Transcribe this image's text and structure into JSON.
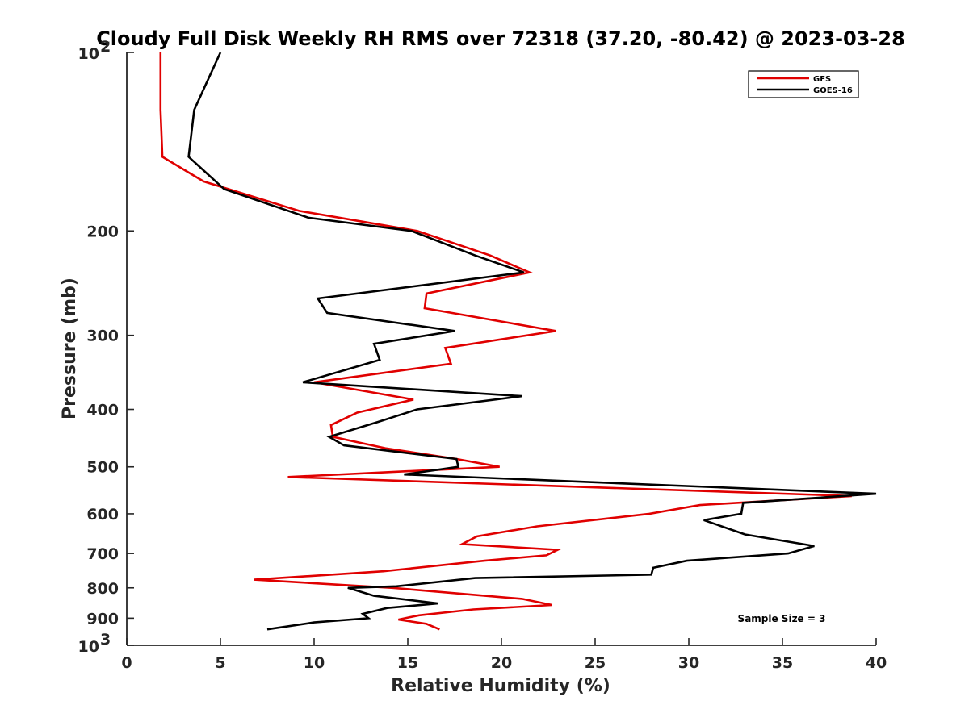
{
  "chart_data": {
    "type": "line",
    "title": "Cloudy Full Disk Weekly RH RMS over 72318 (37.20, -80.42) @ 2023-03-28",
    "xlabel": "Relative Humidity (%)",
    "ylabel": "Pressure (mb)",
    "xlim": [
      0,
      40
    ],
    "ylim": [
      100,
      1000
    ],
    "yscale": "log",
    "y_reversed": true,
    "x_ticks": [
      0,
      5,
      10,
      15,
      20,
      25,
      30,
      35,
      40
    ],
    "y_ticks": [
      {
        "value": 100,
        "base": "10",
        "exp": "2"
      },
      {
        "value": 200,
        "label": "200"
      },
      {
        "value": 300,
        "label": "300"
      },
      {
        "value": 400,
        "label": "400"
      },
      {
        "value": 500,
        "label": "500"
      },
      {
        "value": 600,
        "label": "600"
      },
      {
        "value": 700,
        "label": "700"
      },
      {
        "value": 800,
        "label": "800"
      },
      {
        "value": 900,
        "label": "900"
      },
      {
        "value": 1000,
        "base": "10",
        "exp": "3"
      }
    ],
    "series": [
      {
        "name": "GFS",
        "color": "#e00000",
        "x": [
          1.8,
          1.8,
          1.9,
          4.1,
          9.2,
          15.5,
          19.4,
          21.5,
          16.0,
          15.9,
          22.9,
          17.0,
          17.3,
          10.0,
          15.3,
          12.3,
          10.9,
          11.0,
          13.8,
          17.6,
          19.9,
          8.6,
          38.7,
          30.6,
          27.9,
          21.9,
          18.7,
          17.9,
          23.0,
          22.4,
          19.1,
          13.7,
          6.8,
          14.2,
          21.1,
          22.7,
          18.5,
          15.6,
          14.5,
          16.0,
          16.7
        ],
        "y": [
          100,
          125,
          150,
          165,
          185,
          200,
          220,
          235,
          255,
          270,
          295,
          315,
          335,
          360,
          385,
          405,
          425,
          445,
          465,
          485,
          500,
          520,
          560,
          580,
          600,
          630,
          655,
          675,
          690,
          705,
          720,
          750,
          775,
          800,
          835,
          855,
          870,
          890,
          905,
          920,
          940
        ]
      },
      {
        "name": "GOES-16",
        "color": "#000000",
        "x": [
          5.0,
          3.6,
          3.3,
          5.2,
          9.7,
          15.2,
          18.6,
          21.2,
          10.2,
          10.7,
          17.5,
          13.2,
          13.5,
          9.4,
          21.1,
          15.5,
          13.4,
          10.8,
          11.6,
          17.6,
          17.7,
          14.8,
          40.0,
          32.9,
          32.8,
          30.8,
          33.0,
          36.7,
          35.3,
          29.9,
          28.1,
          28.0,
          18.6,
          14.4,
          11.8,
          13.2,
          16.6,
          13.9,
          12.6,
          12.9,
          10.0,
          7.5
        ],
        "y": [
          100,
          125,
          150,
          170,
          190,
          200,
          220,
          235,
          260,
          275,
          295,
          310,
          330,
          360,
          380,
          400,
          420,
          445,
          460,
          485,
          500,
          515,
          555,
          575,
          600,
          615,
          650,
          680,
          700,
          720,
          740,
          760,
          770,
          795,
          800,
          825,
          850,
          865,
          885,
          900,
          915,
          940
        ]
      }
    ],
    "legend": {
      "position": "top-right",
      "entries": [
        "GFS",
        "GOES-16"
      ]
    },
    "annotations": [
      "Sample Size = 3"
    ],
    "grid": false
  }
}
